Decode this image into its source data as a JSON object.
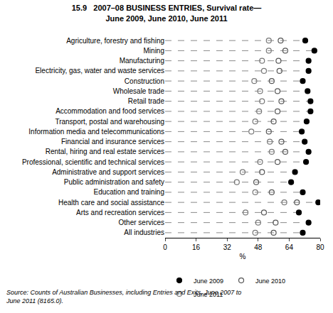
{
  "chart_data": {
    "type": "dot",
    "orientation": "horizontal",
    "title": [
      "15.9   2007–08 BUSINESS ENTRIES, Survival rate—",
      "June 2009, June 2010, June 2011"
    ],
    "x_label": "%",
    "source": [
      "Source: Counts of Australian Businesses, including Entries and Exits, June 2007 to",
      "June 2011 (8165.0)."
    ],
    "categories": [
      "Agriculture, forestry and fishing",
      "Mining",
      "Manufacturing",
      "Electricity, gas, water and waste services",
      "Construction",
      "Wholesale trade",
      "Retail trade",
      "Accommodation and food services",
      "Transport, postal and warehousing",
      "Information media and telecommunications",
      "Financial and insurance services",
      "Rental, hiring and real estate services",
      "Professional, scientific and technical services",
      "Administrative and support services",
      "Public administration and safety",
      "Education and training",
      "Health care and social assistance",
      "Arts and recreation services",
      "Other services",
      "All industries"
    ],
    "series": [
      {
        "name": "June 2009",
        "color": "#000000",
        "marker": "filled",
        "values": [
          72.3,
          77,
          74,
          74,
          71,
          73.5,
          75,
          75,
          73,
          70.5,
          72,
          74,
          72.7,
          67,
          65,
          71,
          79,
          69,
          74,
          71
        ]
      },
      {
        "name": "June 2010",
        "color": "#555555",
        "marker": "open",
        "values": [
          59.6,
          62,
          58.5,
          59,
          55,
          58,
          60,
          58,
          56,
          53.5,
          60,
          62,
          58,
          50,
          47,
          55,
          68,
          51,
          57,
          56
        ]
      },
      {
        "name": "June 2011",
        "color": "#777777",
        "marker": "open",
        "values": [
          53.5,
          53.5,
          50,
          51,
          46,
          49,
          50,
          48.5,
          46.5,
          44.5,
          54,
          55,
          49,
          40,
          37,
          46.5,
          61.5,
          41.5,
          48,
          46.5
        ]
      }
    ],
    "xlim": [
      0,
      80
    ],
    "xticks": [
      0,
      16,
      32,
      48,
      64,
      80
    ],
    "line_style": "dashed",
    "grid": false,
    "legend": "bottom"
  }
}
